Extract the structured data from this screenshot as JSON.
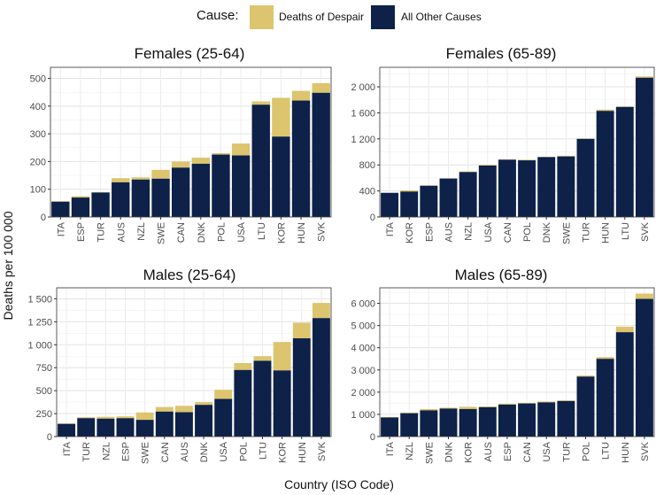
{
  "legend": {
    "title": "Cause:",
    "items": [
      {
        "label": "Deaths of Despair",
        "color": "#dcc56e"
      },
      {
        "label": "All Other Causes",
        "color": "#0d2149"
      }
    ]
  },
  "y_axis_label": "Deaths per 100 000",
  "x_axis_label": "Country (ISO Code)",
  "colors": {
    "despair": "#dcc56e",
    "other": "#0d2149",
    "panel_border": "#333333",
    "grid": "#e3e3e3"
  },
  "chart_data": [
    {
      "type": "bar",
      "stacked": true,
      "title": "Females (25-64)",
      "categories": [
        "ITA",
        "ESP",
        "TUR",
        "AUS",
        "NZL",
        "SWE",
        "CAN",
        "DNK",
        "POL",
        "USA",
        "LTU",
        "KOR",
        "HUN",
        "SVK"
      ],
      "series": [
        {
          "name": "All Other Causes",
          "values": [
            55,
            70,
            88,
            125,
            135,
            138,
            178,
            192,
            225,
            222,
            405,
            290,
            420,
            448
          ]
        },
        {
          "name": "Deaths of Despair",
          "values": [
            2,
            5,
            2,
            15,
            8,
            32,
            22,
            22,
            5,
            43,
            12,
            140,
            35,
            35
          ]
        }
      ],
      "ylim": [
        0,
        540
      ],
      "yticks": [
        0,
        100,
        200,
        300,
        400,
        500
      ],
      "ytick_labels": [
        "0",
        "100",
        "200",
        "300",
        "400",
        "500"
      ]
    },
    {
      "type": "bar",
      "stacked": true,
      "title": "Females (65-89)",
      "categories": [
        "ITA",
        "KOR",
        "ESP",
        "AUS",
        "NZL",
        "USA",
        "CAN",
        "POL",
        "DNK",
        "SWE",
        "TUR",
        "HUN",
        "LTU",
        "SVK"
      ],
      "series": [
        {
          "name": "All Other Causes",
          "values": [
            370,
            390,
            480,
            590,
            690,
            790,
            880,
            870,
            920,
            930,
            1200,
            1630,
            1690,
            2140
          ]
        },
        {
          "name": "Deaths of Despair",
          "values": [
            5,
            20,
            5,
            5,
            10,
            10,
            5,
            10,
            5,
            10,
            5,
            20,
            10,
            20
          ]
        }
      ],
      "ylim": [
        0,
        2300
      ],
      "yticks": [
        0,
        400,
        800,
        1200,
        1600,
        2000
      ],
      "ytick_labels": [
        "0",
        "400",
        "800",
        "1 200",
        "1 600",
        "2 000"
      ]
    },
    {
      "type": "bar",
      "stacked": true,
      "title": "Males (25-64)",
      "categories": [
        "ITA",
        "TUR",
        "NZL",
        "ESP",
        "SWE",
        "CAN",
        "AUS",
        "DNK",
        "USA",
        "POL",
        "LTU",
        "KOR",
        "HUN",
        "SVK"
      ],
      "series": [
        {
          "name": "All Other Causes",
          "values": [
            138,
            200,
            195,
            200,
            182,
            272,
            265,
            345,
            410,
            725,
            825,
            720,
            1070,
            1290
          ]
        },
        {
          "name": "Deaths of Despair",
          "values": [
            5,
            10,
            20,
            20,
            80,
            50,
            70,
            30,
            100,
            75,
            50,
            310,
            170,
            165
          ]
        }
      ],
      "ylim": [
        0,
        1620
      ],
      "yticks": [
        0,
        250,
        500,
        750,
        1000,
        1250,
        1500
      ],
      "ytick_labels": [
        "0",
        "250",
        "500",
        "750",
        "1 000",
        "1 250",
        "1 500"
      ]
    },
    {
      "type": "bar",
      "stacked": true,
      "title": "Males (65-89)",
      "categories": [
        "ITA",
        "NZL",
        "SWE",
        "DNK",
        "KOR",
        "AUS",
        "ESP",
        "CAN",
        "USA",
        "TUR",
        "POL",
        "LTU",
        "HUN",
        "SVK"
      ],
      "series": [
        {
          "name": "All Other Causes",
          "values": [
            860,
            1050,
            1180,
            1260,
            1240,
            1320,
            1440,
            1490,
            1540,
            1600,
            2700,
            3500,
            4700,
            6200
          ]
        },
        {
          "name": "Deaths of Despair",
          "values": [
            20,
            30,
            60,
            40,
            100,
            40,
            40,
            30,
            40,
            30,
            50,
            80,
            250,
            240
          ]
        }
      ],
      "ylim": [
        0,
        6700
      ],
      "yticks": [
        0,
        1000,
        2000,
        3000,
        4000,
        5000,
        6000
      ],
      "ytick_labels": [
        "0",
        "1 000",
        "2 000",
        "3 000",
        "4 000",
        "5 000",
        "6 000"
      ]
    }
  ]
}
